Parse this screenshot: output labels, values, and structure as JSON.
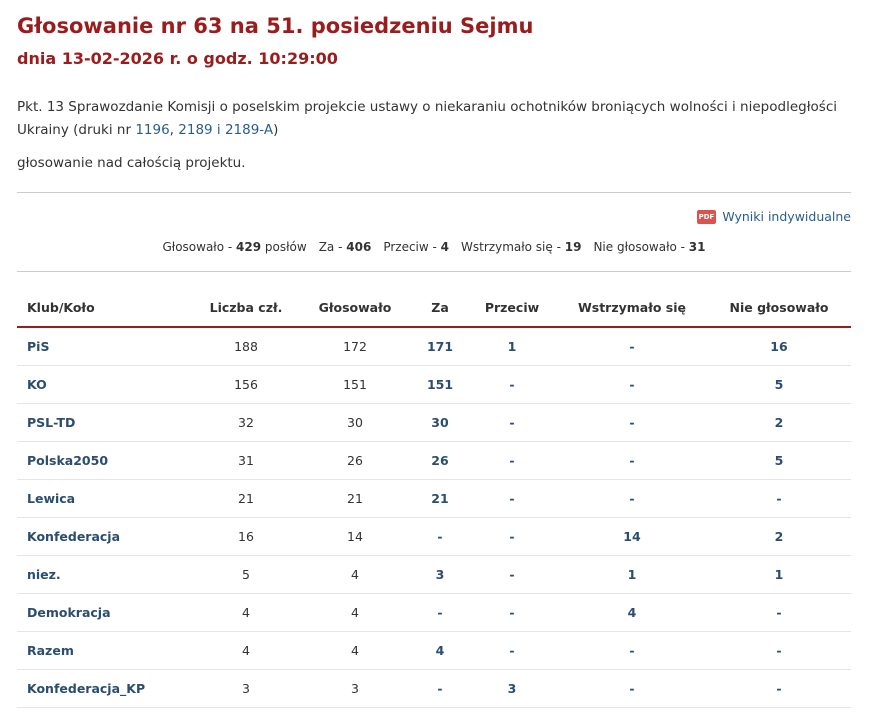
{
  "header": {
    "title": "Głosowanie nr 63 na 51. posiedzeniu Sejmu",
    "subtitle": "dnia 13-02-2026 r. o godz. 10:29:00"
  },
  "description": {
    "text": "Pkt. 13 Sprawozdanie Komisji o poselskim projekcie ustawy o niekaraniu ochotników broniących wolności i niepodległości Ukrainy (druki nr ",
    "links": [
      "1196",
      "2189 i 2189-A"
    ],
    "separator": ", ",
    "suffix": ")"
  },
  "subject": "głosowanie nad całością projektu.",
  "pdf": {
    "icon": "PDF",
    "label": "Wyniki indywidualne"
  },
  "summary": {
    "separator": " - ",
    "items": [
      {
        "label": "Głosowało",
        "value": 429,
        "unit": "posłów"
      },
      {
        "label": "Za",
        "value": 406
      },
      {
        "label": "Przeciw",
        "value": 4
      },
      {
        "label": "Wstrzymało się",
        "value": 19
      },
      {
        "label": "Nie głosowało",
        "value": 31
      }
    ]
  },
  "table": {
    "headers": [
      "Klub/Koło",
      "Liczba czł.",
      "Głosowało",
      "Za",
      "Przeciw",
      "Wstrzymało się",
      "Nie głosowało"
    ],
    "rows": [
      [
        "PiS",
        188,
        172,
        171,
        1,
        "-",
        16
      ],
      [
        "KO",
        156,
        151,
        151,
        "-",
        "-",
        5
      ],
      [
        "PSL-TD",
        32,
        30,
        30,
        "-",
        "-",
        2
      ],
      [
        "Polska2050",
        31,
        26,
        26,
        "-",
        "-",
        5
      ],
      [
        "Lewica",
        21,
        21,
        21,
        "-",
        "-",
        "-"
      ],
      [
        "Konfederacja",
        16,
        14,
        "-",
        "-",
        14,
        2
      ],
      [
        "niez.",
        5,
        4,
        3,
        "-",
        1,
        1
      ],
      [
        "Demokracja",
        4,
        4,
        "-",
        "-",
        4,
        "-"
      ],
      [
        "Razem",
        4,
        4,
        4,
        "-",
        "-",
        "-"
      ],
      [
        "Konfederacja_KP",
        3,
        3,
        "-",
        3,
        "-",
        "-"
      ]
    ]
  }
}
